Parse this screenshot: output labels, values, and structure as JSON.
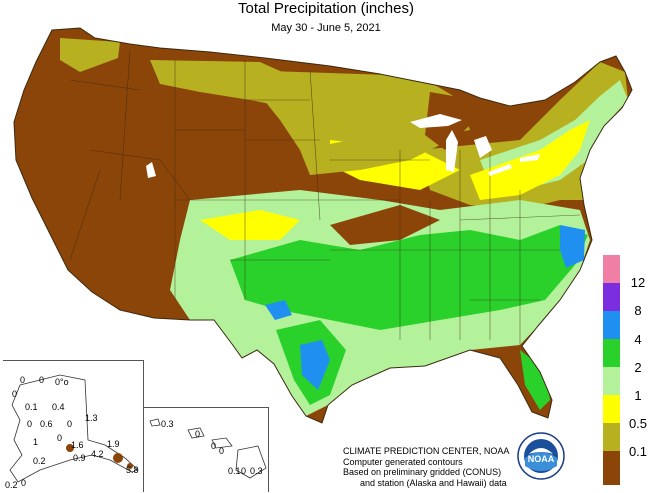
{
  "header": {
    "title": "Total Precipitation (inches)",
    "date_range": "May 30 - June 5, 2021"
  },
  "legend": {
    "items": [
      {
        "label": "",
        "color": "#f07fa6"
      },
      {
        "label": "12",
        "color": "#7b2ee0"
      },
      {
        "label": "8",
        "color": "#1f8ff0"
      },
      {
        "label": "4",
        "color": "#2bd12b"
      },
      {
        "label": "2",
        "color": "#b3f29a"
      },
      {
        "label": "1",
        "color": "#ffff00"
      },
      {
        "label": "0.5",
        "color": "#b7b020"
      },
      {
        "label": "0.1",
        "color": "#8b4509"
      }
    ]
  },
  "credits": {
    "line1": "CLIMATE PREDICTION CENTER, NOAA",
    "line2": "Computer generated contours",
    "line3": "Based on preliminary gridded (CONUS)",
    "line4": "and station (Alaska and Hawaii) data"
  },
  "alaska": {
    "values": [
      "0",
      "0",
      "0°o",
      "0",
      "0.1",
      "0.4",
      "0",
      "0.6",
      "0",
      "1.3",
      "1",
      "0",
      "0.2",
      "1.6",
      "1.9",
      "0.9",
      "4.2",
      "5.8",
      "0.2",
      "0"
    ]
  },
  "hawaii": {
    "values": [
      "0.3",
      "0",
      "0",
      "0",
      "0.1",
      "0",
      "0.3"
    ]
  },
  "logo": {
    "text": "NOAA"
  },
  "colors": {
    "dry": "#8b4509",
    "light": "#b7b020",
    "moderate": "#ffff00",
    "wet": "#b3f29a",
    "very_wet": "#2bd12b",
    "heavy": "#1f8ff0",
    "border": "#3a2a10"
  }
}
